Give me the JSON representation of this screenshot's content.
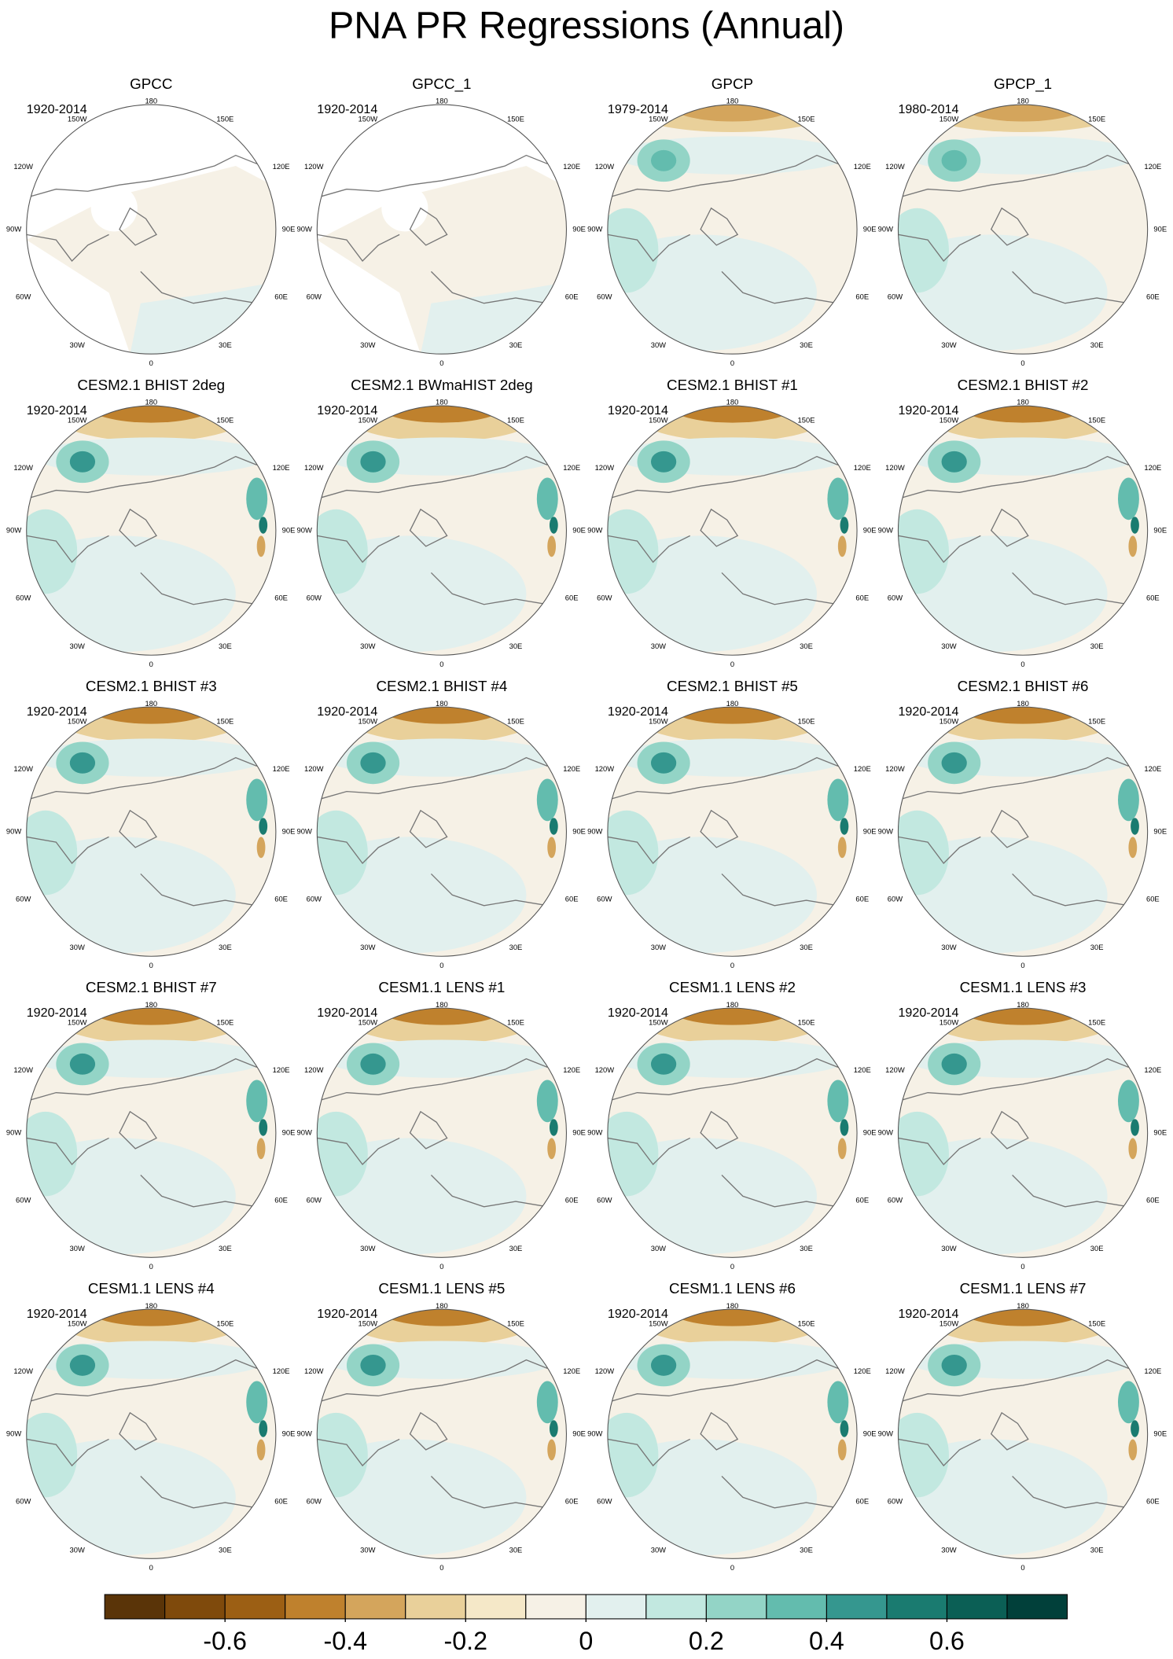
{
  "title": "PNA PR Regressions (Annual)",
  "panels": [
    {
      "title": "GPCC",
      "period": "1920-2014"
    },
    {
      "title": "GPCC_1",
      "period": "1920-2014"
    },
    {
      "title": "GPCP",
      "period": "1979-2014"
    },
    {
      "title": "GPCP_1",
      "period": "1980-2014"
    },
    {
      "title": "CESM2.1 BHIST 2deg",
      "period": "1920-2014"
    },
    {
      "title": "CESM2.1 BWmaHIST 2deg",
      "period": "1920-2014"
    },
    {
      "title": "CESM2.1 BHIST #1",
      "period": "1920-2014"
    },
    {
      "title": "CESM2.1 BHIST #2",
      "period": "1920-2014"
    },
    {
      "title": "CESM2.1 BHIST #3",
      "period": "1920-2014"
    },
    {
      "title": "CESM2.1 BHIST #4",
      "period": "1920-2014"
    },
    {
      "title": "CESM2.1 BHIST #5",
      "period": "1920-2014"
    },
    {
      "title": "CESM2.1 BHIST #6",
      "period": "1920-2014"
    },
    {
      "title": "CESM2.1 BHIST #7",
      "period": "1920-2014"
    },
    {
      "title": "CESM1.1 LENS #1",
      "period": "1920-2014"
    },
    {
      "title": "CESM1.1 LENS #2",
      "period": "1920-2014"
    },
    {
      "title": "CESM1.1 LENS #3",
      "period": "1920-2014"
    },
    {
      "title": "CESM1.1 LENS #4",
      "period": "1920-2014"
    },
    {
      "title": "CESM1.1 LENS #5",
      "period": "1920-2014"
    },
    {
      "title": "CESM1.1 LENS #6",
      "period": "1920-2014"
    },
    {
      "title": "CESM1.1 LENS #7",
      "period": "1920-2014"
    }
  ],
  "lon_labels": [
    "180",
    "150W",
    "150E",
    "120W",
    "120E",
    "90W",
    "90E",
    "60W",
    "60E",
    "30W",
    "30E",
    "0"
  ],
  "colorbar": {
    "range": [
      -0.8,
      0.8
    ],
    "colors": [
      "#5a3408",
      "#7f4a0c",
      "#9c5f14",
      "#bf812d",
      "#d4a55c",
      "#e9d09a",
      "#f5e8c8",
      "#f6f1e6",
      "#e2f0ee",
      "#c2e8e0",
      "#93d4c6",
      "#63bcae",
      "#35978f",
      "#1a7b70",
      "#0b5f55",
      "#01403a"
    ],
    "ticks": [
      -0.6,
      -0.4,
      -0.2,
      0,
      0.2,
      0.4,
      0.6
    ]
  }
}
